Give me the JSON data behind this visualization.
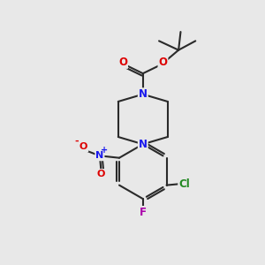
{
  "bg_color": "#e8e8e8",
  "bond_color": "#2a2a2a",
  "atom_colors": {
    "N": "#1a1aee",
    "O": "#dd0000",
    "F": "#aa00aa",
    "Cl": "#228822",
    "C": "#2a2a2a"
  },
  "bond_width": 1.5,
  "font_size_atoms": 8.5,
  "scale": 1.0
}
